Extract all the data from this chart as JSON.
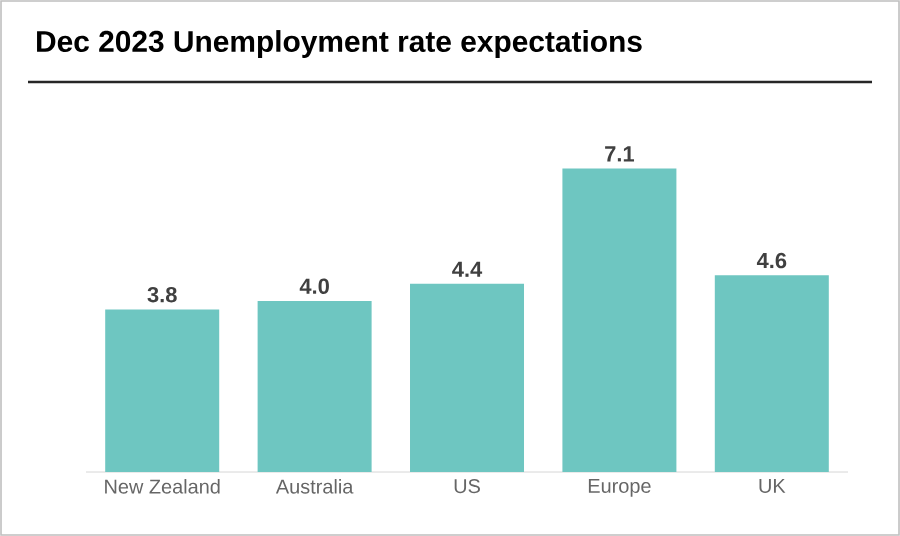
{
  "chart_data": {
    "type": "bar",
    "title": "Dec 2023 Unemployment rate expectations",
    "categories": [
      "New Zealand",
      "Australia",
      "US",
      "Europe",
      "UK"
    ],
    "values": [
      3.8,
      4.0,
      4.4,
      7.1,
      4.6
    ],
    "value_labels": [
      "3.8",
      "4.0",
      "4.4",
      "7.1",
      "4.6"
    ],
    "color": "#6ec6c1"
  }
}
